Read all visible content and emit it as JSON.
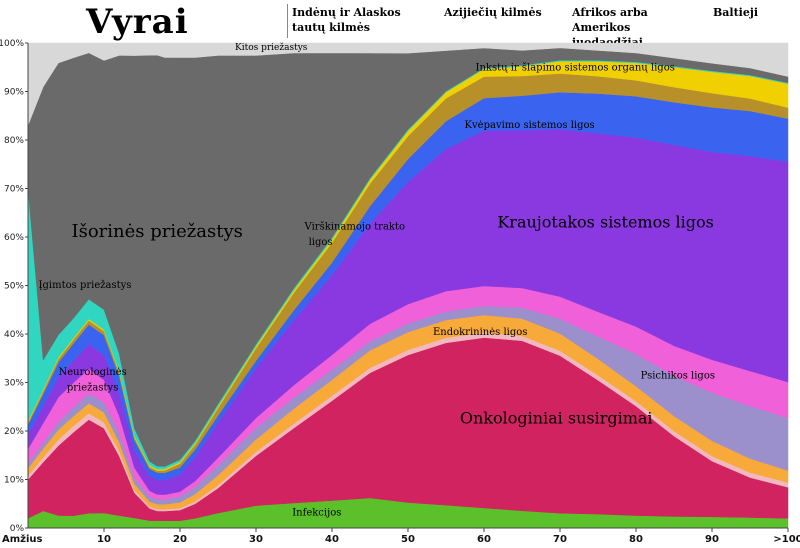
{
  "chart_data": {
    "type": "area",
    "title": "Vyrai",
    "legend": [
      "Indėnų ir Alaskos tautų kilmės",
      "Azijiečių kilmės",
      "Afrikos arba Amerikos juodaodžiai",
      "Baltieji"
    ],
    "xlabel": "Amžius",
    "x_ticks": [
      "10",
      "20",
      "30",
      "40",
      "50",
      "60",
      "70",
      "80",
      "90",
      ">100"
    ],
    "y_ticks": [
      "0%",
      "10%",
      "20%",
      "30%",
      "40%",
      "50%",
      "60%",
      "70%",
      "80%",
      "90%",
      "100%"
    ],
    "xlim": [
      0,
      100
    ],
    "ylim": [
      0,
      100
    ],
    "x": [
      0,
      2,
      4,
      6,
      8,
      10,
      12,
      14,
      16,
      17,
      18,
      20,
      22,
      25,
      30,
      35,
      40,
      45,
      50,
      55,
      60,
      65,
      70,
      75,
      80,
      85,
      90,
      95,
      100
    ],
    "series": [
      {
        "name": "Infekcijos",
        "color": "#5cc02a",
        "values": [
          2,
          3.5,
          2.5,
          2.5,
          3,
          3,
          2.5,
          2,
          1.5,
          1.5,
          1.5,
          1.5,
          2,
          3,
          4.5,
          5,
          5.5,
          6,
          5,
          4.5,
          4,
          3.5,
          3,
          2.8,
          2.5,
          2.3,
          2.2,
          2.1,
          2
        ]
      },
      {
        "name": "Onkologiniai susirgimai",
        "color": "#d0235f",
        "values": [
          8,
          10,
          14,
          17,
          19,
          17,
          12,
          5,
          2.5,
          2,
          2,
          2.2,
          3,
          5,
          10,
          15,
          20,
          25,
          29,
          32,
          34,
          34.5,
          32,
          27,
          22,
          16,
          11,
          8,
          6.5
        ]
      },
      {
        "name": "",
        "color": "#f2b8bf",
        "values": [
          0.8,
          1,
          1.2,
          1.3,
          1.3,
          1.2,
          1,
          0.6,
          0.4,
          0.4,
          0.4,
          0.4,
          0.5,
          0.6,
          0.8,
          0.9,
          1,
          1,
          1,
          1,
          1,
          1,
          1,
          1,
          1,
          1,
          1,
          1,
          1
        ]
      },
      {
        "name": "Endokrininės ligos",
        "color": "#f7a93a",
        "values": [
          1.5,
          1.8,
          2,
          2,
          2,
          2,
          1.8,
          1.2,
          1,
          1,
          1,
          1.2,
          1.5,
          2,
          2.5,
          3,
          3.2,
          3.5,
          3.5,
          3.5,
          3.5,
          3.5,
          3.5,
          3.3,
          3,
          3,
          3,
          2.8,
          2.5
        ]
      },
      {
        "name": "Psichikos ligos",
        "color": "#9b8fcc",
        "values": [
          1,
          1.2,
          1.5,
          1.8,
          2,
          2,
          1.8,
          1.2,
          1,
          1,
          1,
          1.2,
          1.5,
          2,
          2.3,
          2.2,
          2,
          1.8,
          1.7,
          1.7,
          1.8,
          2.2,
          3,
          4.5,
          6.5,
          8,
          9.5,
          10.5,
          11
        ]
      },
      {
        "name": "Neurologinės priežastys",
        "color": "#f060d8",
        "values": [
          3,
          4,
          5,
          5,
          5,
          4.5,
          3.5,
          2,
          1.2,
          1,
          1,
          1,
          1.2,
          1.5,
          2,
          2.5,
          3,
          3.5,
          3.8,
          4,
          4,
          4,
          4.5,
          5,
          5.5,
          6,
          6.5,
          7,
          7.5
        ]
      },
      {
        "name": "Kraujotakos sistemos ligos",
        "color": "#8a38e0",
        "values": [
          3,
          3.5,
          4,
          4.5,
          5,
          5,
          4.5,
          3.5,
          3,
          3,
          3,
          3.5,
          5,
          7,
          10,
          13,
          16,
          20,
          24,
          28,
          31,
          32,
          34,
          36,
          38,
          40,
          41,
          43,
          46
        ]
      },
      {
        "name": "Kvėpavimo sistemos ligos",
        "color": "#3a64f0",
        "values": [
          2,
          2.5,
          3,
          3.5,
          4,
          4,
          3.5,
          2,
          1.5,
          1.5,
          1.5,
          1.5,
          1.5,
          1.5,
          1.5,
          2,
          2.5,
          3.5,
          4.5,
          5.5,
          6.5,
          7,
          7.5,
          8,
          8.3,
          8.5,
          8.8,
          9,
          9
        ]
      },
      {
        "name": "Virškinamojo trakto ligos",
        "color": "#b8902a",
        "values": [
          0.5,
          0.6,
          0.7,
          0.8,
          0.8,
          0.8,
          0.7,
          0.5,
          0.4,
          0.4,
          0.5,
          0.8,
          1,
          1.5,
          2.5,
          3.5,
          4,
          4.5,
          4.5,
          4.5,
          4.3,
          4,
          3.8,
          3.5,
          3.2,
          3,
          2.8,
          2.5,
          2.3
        ]
      },
      {
        "name": "Inkstų ir šlapimo sistemos organų ligos",
        "color": "#f0d000",
        "values": [
          0.3,
          0.3,
          0.3,
          0.3,
          0.3,
          0.3,
          0.3,
          0.3,
          0.3,
          0.3,
          0.3,
          0.3,
          0.3,
          0.3,
          0.4,
          0.5,
          0.6,
          0.8,
          1,
          1.2,
          1.5,
          2,
          2.5,
          3,
          3.5,
          4,
          4.2,
          4.5,
          5
        ]
      },
      {
        "name": "Įgimtos priežastys",
        "color": "#30d6c0",
        "values": [
          48,
          6,
          4.5,
          4,
          4,
          4,
          3.5,
          1.5,
          0.8,
          0.6,
          0.5,
          0.5,
          0.5,
          0.5,
          0.4,
          0.4,
          0.4,
          0.3,
          0.3,
          0.2,
          0.2,
          0.2,
          0.2,
          0.2,
          0.2,
          0.2,
          0.2,
          0.2,
          0.2
        ]
      },
      {
        "name": "Išorinės priežastys",
        "color": "#6a6a6a",
        "values": [
          13,
          56,
          54.5,
          53,
          50,
          50,
          60,
          74,
          83,
          84.5,
          84.5,
          83,
          79,
          70,
          58,
          47,
          37,
          25,
          15,
          8,
          4,
          3,
          2.5,
          2,
          1.8,
          1.6,
          1.5,
          1.4,
          1.3
        ]
      },
      {
        "name": "Kitos priežastys",
        "color": "#d8d8d8",
        "values": [
          17,
          9,
          4,
          3,
          2,
          3.5,
          2.5,
          2.5,
          2.5,
          2.5,
          3,
          3,
          3,
          2.5,
          2.5,
          2,
          2,
          2,
          2,
          1.5,
          1,
          1.5,
          1,
          1.5,
          2,
          3,
          4,
          5,
          7
        ]
      }
    ],
    "annotations": [
      {
        "text": "Kitos priežastys",
        "x": 32,
        "y": 98.6,
        "size": 9
      },
      {
        "text": "Inkstų ir šlapimo sistemos organų ligos",
        "x": 72,
        "y": 94.3,
        "size": 10
      },
      {
        "text": "Kvėpavimo sistemos ligos",
        "x": 66,
        "y": 82.5,
        "size": 10
      },
      {
        "text": "Išorinės priežastys",
        "x": 17,
        "y": 60,
        "size": 18
      },
      {
        "text": "Virškinamojo trakto",
        "x": 43,
        "y": 61.5,
        "size": 10
      },
      {
        "text": "ligos",
        "x": 38.5,
        "y": 58.3,
        "size": 10
      },
      {
        "text": "Kraujotakos sistemos ligos",
        "x": 76,
        "y": 62,
        "size": 16
      },
      {
        "text": "Įgimtos priežastys",
        "x": 7.5,
        "y": 49.5,
        "size": 10
      },
      {
        "text": "Endokrininės ligos",
        "x": 59.5,
        "y": 39.8,
        "size": 10
      },
      {
        "text": "Neurologinės",
        "x": 8.5,
        "y": 31.5,
        "size": 10
      },
      {
        "text": "priežastys",
        "x": 8.5,
        "y": 28.3,
        "size": 10
      },
      {
        "text": "Psichikos ligos",
        "x": 85.5,
        "y": 30.8,
        "size": 10
      },
      {
        "text": "Onkologiniai susirgimai",
        "x": 69.5,
        "y": 21.5,
        "size": 16
      },
      {
        "text": "Infekcijos",
        "x": 38,
        "y": 2.6,
        "size": 10
      }
    ]
  }
}
